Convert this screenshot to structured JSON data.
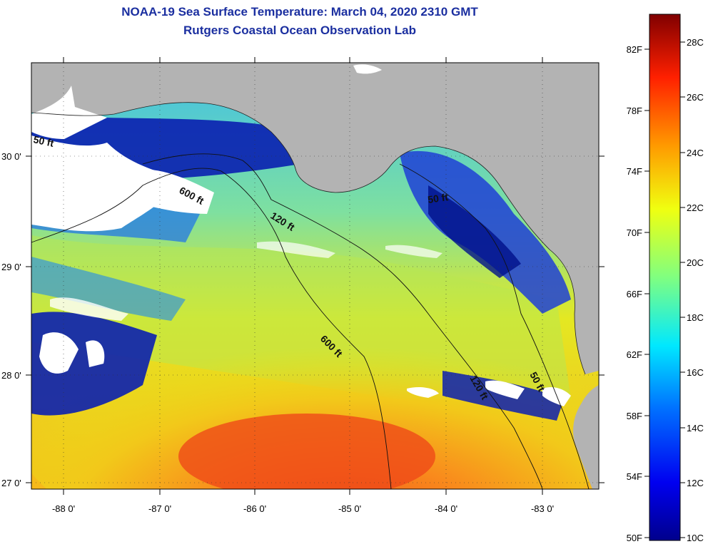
{
  "title_line1": "NOAA-19 Sea Surface Temperature:  March 04, 2020 2310 GMT",
  "title_line2": "Rutgers Coastal Ocean Observation Lab",
  "lon_ticks": [
    "-88 0'",
    "-87 0'",
    "-86 0'",
    "-85 0'",
    "-84 0'",
    "-83 0'"
  ],
  "lat_ticks": [
    "30 0'",
    "29 0'",
    "28 0'",
    "27 0'"
  ],
  "contours": [
    "50 ft",
    "600 ft",
    "120 ft",
    "50 ft",
    "600 ft",
    "120 ft",
    "50 ft"
  ],
  "colorbar": {
    "fahrenheit": [
      "82F",
      "78F",
      "74F",
      "70F",
      "66F",
      "62F",
      "58F",
      "54F",
      "50F"
    ],
    "celsius": [
      "28C",
      "26C",
      "24C",
      "22C",
      "20C",
      "18C",
      "16C",
      "14C",
      "12C",
      "10C"
    ]
  },
  "colors": {
    "land": "#b3b3b3",
    "cloud": "#ffffff",
    "title": "#1b2fa0"
  }
}
